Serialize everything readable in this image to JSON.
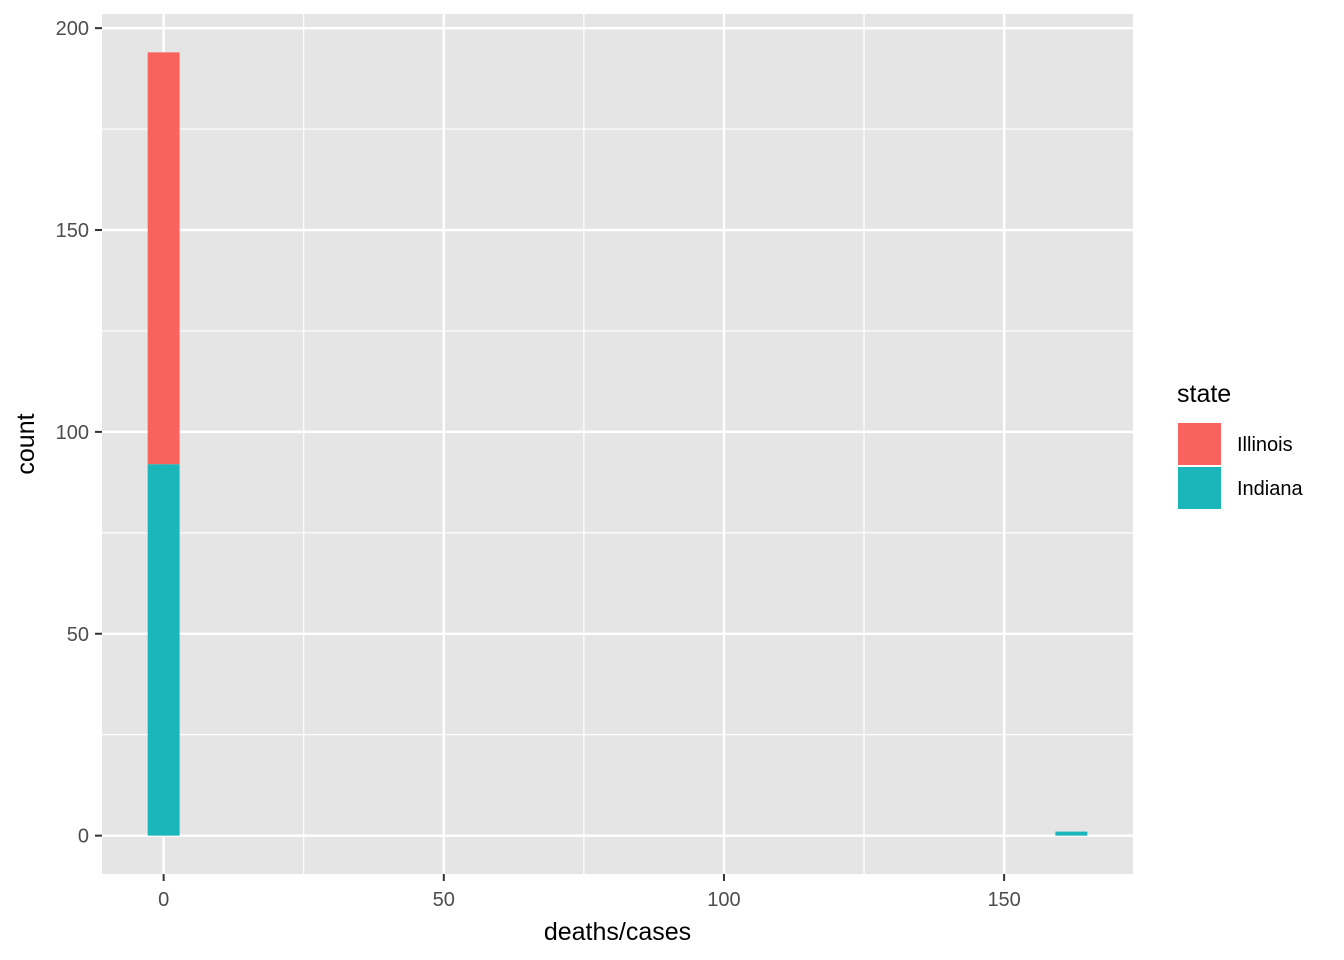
{
  "chart_data": {
    "type": "bar",
    "stacked": true,
    "xlabel": "deaths/cases",
    "ylabel": "count",
    "xlim": [
      -11,
      173
    ],
    "ylim": [
      -9.5,
      203.5
    ],
    "x_ticks": [
      0,
      50,
      100,
      150
    ],
    "x_tick_labels": [
      "0",
      "50",
      "100",
      "150"
    ],
    "x_minor_ticks": [
      25,
      75,
      125
    ],
    "y_ticks": [
      0,
      50,
      100,
      150,
      200
    ],
    "y_tick_labels": [
      "0",
      "50",
      "100",
      "150",
      "200"
    ],
    "y_minor_ticks": [
      25,
      75,
      125,
      175
    ],
    "grid": true,
    "legend": {
      "title": "state",
      "position": "right"
    },
    "bin_width": 5.7,
    "series": [
      {
        "name": "Indiana",
        "color": "#1ab6b9",
        "bins": [
          {
            "x": 0,
            "count": 92
          },
          {
            "x": 162,
            "count": 1
          }
        ]
      },
      {
        "name": "Illinois",
        "color": "#f8635e",
        "bins": [
          {
            "x": 0,
            "count": 102
          }
        ]
      }
    ],
    "legend_order": [
      "Illinois",
      "Indiana"
    ]
  },
  "colors": {
    "panel_background": "#e5e5e5",
    "grid_line": "#ffffff",
    "tick_color": "#333333"
  }
}
